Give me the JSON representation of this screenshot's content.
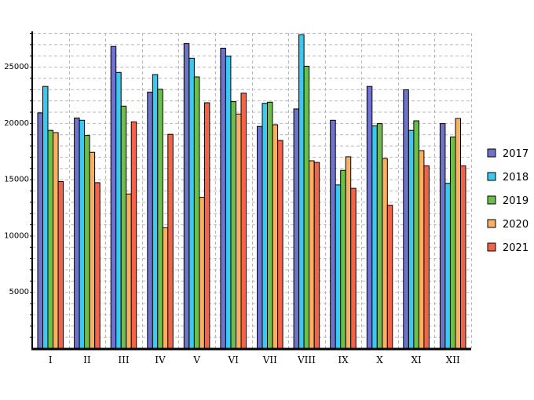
{
  "chart_data": {
    "type": "bar",
    "title": "",
    "xlabel": "",
    "ylabel": "",
    "ylim": [
      0,
      28000
    ],
    "yticks": [
      5000,
      10000,
      15000,
      20000,
      25000
    ],
    "grid": true,
    "legend_position": "right",
    "categories": [
      "I",
      "II",
      "III",
      "IV",
      "V",
      "VI",
      "VII",
      "VIII",
      "IX",
      "X",
      "XI",
      "XII"
    ],
    "series": [
      {
        "name": "2017",
        "color": "#6f73c9",
        "values": [
          20900,
          20450,
          26800,
          22750,
          27050,
          26650,
          19700,
          21250,
          20250,
          23250,
          22950,
          19950
        ]
      },
      {
        "name": "2018",
        "color": "#3cc8f0",
        "values": [
          23250,
          20250,
          24500,
          24300,
          25750,
          25950,
          21750,
          27850,
          14500,
          19750,
          19350,
          14650
        ]
      },
      {
        "name": "2019",
        "color": "#6cc04a",
        "values": [
          19350,
          18900,
          21500,
          23000,
          24100,
          21900,
          21850,
          25050,
          15800,
          19950,
          20200,
          18750
        ]
      },
      {
        "name": "2020",
        "color": "#f9b062",
        "values": [
          19150,
          17400,
          13700,
          10700,
          13400,
          20800,
          19850,
          16650,
          17000,
          16850,
          17550,
          20400
        ]
      },
      {
        "name": "2021",
        "color": "#f2634a",
        "values": [
          14800,
          14700,
          20100,
          19000,
          21800,
          22650,
          18450,
          16500,
          14200,
          12700,
          16200,
          16200
        ]
      }
    ]
  }
}
